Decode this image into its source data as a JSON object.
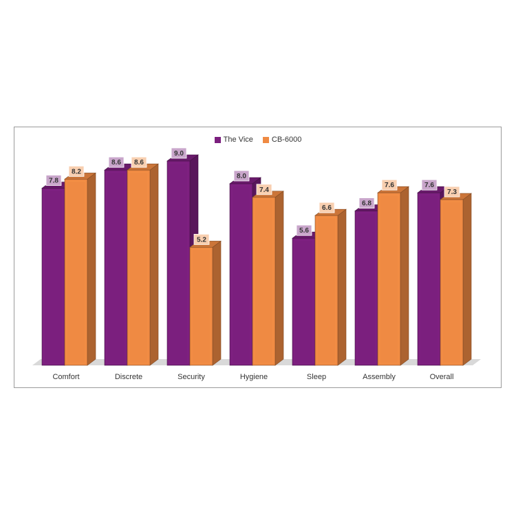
{
  "chart_data": {
    "type": "bar",
    "title": "",
    "xlabel": "",
    "ylabel": "",
    "ylim": [
      0,
      10
    ],
    "grid": false,
    "legend_position": "top-center",
    "categories": [
      "Comfort",
      "Discrete",
      "Security",
      "Hygiene",
      "Sleep",
      "Assembly",
      "Overall"
    ],
    "series": [
      {
        "name": "The Vice",
        "values": [
          7.8,
          8.6,
          9.0,
          8.0,
          5.6,
          6.8,
          7.6
        ],
        "labels": [
          "7.8",
          "8.6",
          "9.0",
          "8.0",
          "5.6",
          "6.8",
          "7.6"
        ],
        "color": "#7b1f7e",
        "label_bg": "#c9a6cb"
      },
      {
        "name": "CB-6000",
        "values": [
          8.2,
          8.6,
          5.2,
          7.4,
          6.6,
          7.6,
          7.3
        ],
        "labels": [
          "8.2",
          "8.6",
          "5.2",
          "7.4",
          "6.6",
          "7.6",
          "7.3"
        ],
        "color": "#ef8a43",
        "label_bg": "#f8cfb0"
      }
    ]
  }
}
